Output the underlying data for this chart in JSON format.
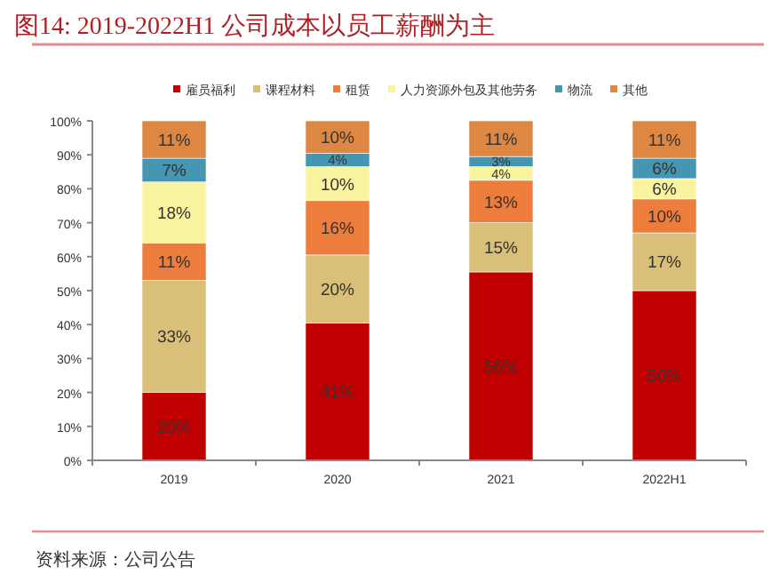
{
  "chart_data": {
    "type": "bar",
    "stacked": true,
    "title": "图14:   2019-2022H1 公司成本以员工薪酬为主",
    "categories": [
      "2019",
      "2020",
      "2021",
      "2022H1"
    ],
    "series": [
      {
        "name": "雇员福利",
        "color": "#c00000",
        "values": [
          20,
          40.5,
          55.5,
          50
        ],
        "value_labels": [
          "20%",
          "41%",
          "56%",
          "50%"
        ]
      },
      {
        "name": "课程材料",
        "color": "#d9bf78",
        "values": [
          33,
          20,
          14.5,
          17
        ],
        "value_labels": [
          "33%",
          "20%",
          "15%",
          "17%"
        ]
      },
      {
        "name": "租赁",
        "color": "#ed7d3c",
        "values": [
          11,
          16,
          12.5,
          10
        ],
        "value_labels": [
          "11%",
          "16%",
          "13%",
          "10%"
        ]
      },
      {
        "name": "人力资源外包及其他劳务",
        "color": "#faf3a0",
        "values": [
          18,
          10,
          4,
          6
        ],
        "value_labels": [
          "18%",
          "10%",
          "4%",
          "6%"
        ]
      },
      {
        "name": "物流",
        "color": "#4596b2",
        "values": [
          7,
          4,
          3,
          6
        ],
        "value_labels": [
          "7%",
          "4%",
          "3%",
          "6%"
        ]
      },
      {
        "name": "其他",
        "color": "#dd8743",
        "values": [
          11,
          9.5,
          10.5,
          11
        ],
        "value_labels": [
          "11%",
          "10%",
          "11%",
          "11%"
        ]
      }
    ],
    "ylim": [
      0,
      100
    ],
    "yticks": [
      {
        "value": 0,
        "label": "0%"
      },
      {
        "value": 10,
        "label": "10%"
      },
      {
        "value": 20,
        "label": "20%"
      },
      {
        "value": 30,
        "label": "30%"
      },
      {
        "value": 40,
        "label": "40%"
      },
      {
        "value": 50,
        "label": "50%"
      },
      {
        "value": 60,
        "label": "60%"
      },
      {
        "value": 70,
        "label": "70%"
      },
      {
        "value": 80,
        "label": "80%"
      },
      {
        "value": 90,
        "label": "90%"
      },
      {
        "value": 100,
        "label": "100%"
      }
    ],
    "grid": false,
    "legend": "top",
    "annotations": [
      "资料来源：公司公告"
    ]
  }
}
